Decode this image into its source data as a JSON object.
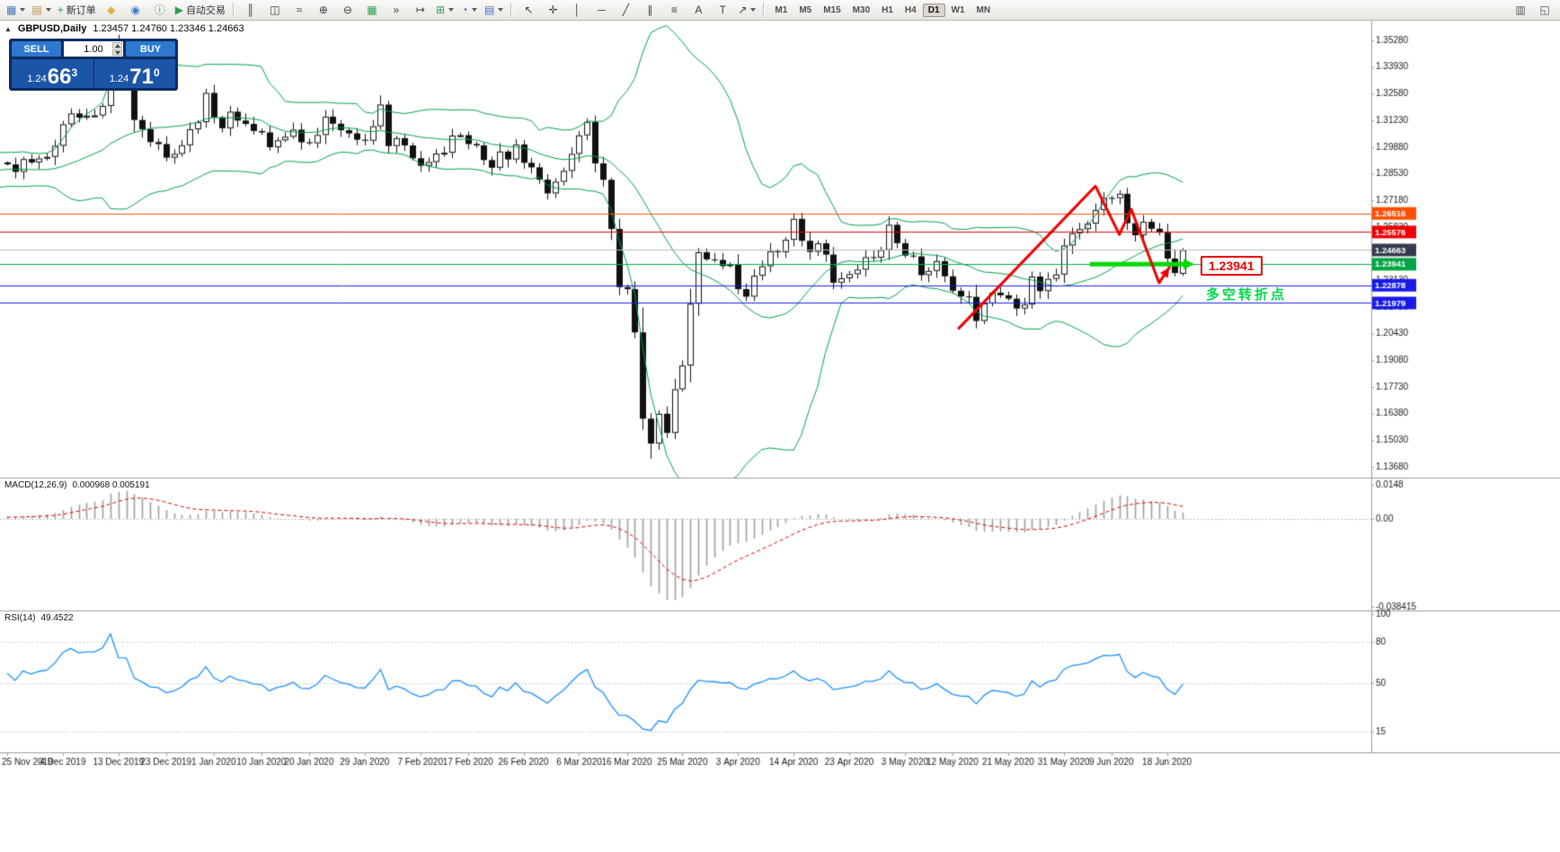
{
  "toolbar": {
    "standard": [
      {
        "name": "new-chart",
        "glyph": "▦",
        "color": "#4a76b8",
        "dropdown": true
      },
      {
        "name": "profiles",
        "glyph": "▤",
        "color": "#b8913f",
        "dropdown": true
      },
      {
        "name": "new-order",
        "glyph": "+",
        "color": "#1ea24d",
        "label": "新订单"
      },
      {
        "name": "metaeditor",
        "glyph": "◆",
        "color": "#e0b23e"
      },
      {
        "name": "community",
        "glyph": "◉",
        "color": "#3f7fd0"
      },
      {
        "name": "help",
        "glyph": "ⓘ",
        "color": "#2d9e52"
      },
      {
        "name": "autotrading",
        "glyph": "▶",
        "color": "#21a04b",
        "label": "自动交易"
      }
    ],
    "chart_tools": [
      {
        "name": "bar-chart",
        "glyph": "║",
        "color": "#3c3c3c"
      },
      {
        "name": "candlestick-chart",
        "glyph": "◫",
        "color": "#3c3c3c"
      },
      {
        "name": "line-chart",
        "glyph": "≈",
        "color": "#3c3c3c"
      },
      {
        "name": "zoom-in",
        "glyph": "⊕",
        "color": "#3c3c3c"
      },
      {
        "name": "zoom-out",
        "glyph": "⊖",
        "color": "#3c3c3c"
      },
      {
        "name": "tile-windows",
        "glyph": "▦",
        "color": "#2d9e52"
      },
      {
        "name": "auto-scroll",
        "glyph": "»",
        "color": "#3c3c3c"
      },
      {
        "name": "chart-shift",
        "glyph": "↦",
        "color": "#3c3c3c"
      },
      {
        "name": "indicators",
        "glyph": "⊞",
        "color": "#2d9e52",
        "dropdown": true
      },
      {
        "name": "periods",
        "glyph": "◔",
        "color": "#3c6fc0",
        "dropdown": true
      },
      {
        "name": "templates",
        "glyph": "▤",
        "color": "#3c6fc0",
        "dropdown": true
      }
    ],
    "line_tools": [
      {
        "name": "cursor",
        "glyph": "↖",
        "color": "#3c3c3c"
      },
      {
        "name": "crosshair",
        "glyph": "✛",
        "color": "#3c3c3c"
      },
      {
        "name": "vertical-line",
        "glyph": "│",
        "color": "#3c3c3c"
      },
      {
        "name": "horizontal-line",
        "glyph": "─",
        "color": "#3c3c3c"
      },
      {
        "name": "trendline",
        "glyph": "╱",
        "color": "#3c3c3c"
      },
      {
        "name": "channel",
        "glyph": "∥",
        "color": "#3c3c3c"
      },
      {
        "name": "fibonacci",
        "glyph": "≡",
        "color": "#3c3c3c"
      },
      {
        "name": "text",
        "glyph": "A",
        "color": "#3c3c3c"
      },
      {
        "name": "text-label",
        "glyph": "T",
        "color": "#3c3c3c"
      },
      {
        "name": "arrows",
        "glyph": "↗",
        "color": "#3c3c3c",
        "dropdown": true
      }
    ],
    "periods": [
      {
        "label": "M1"
      },
      {
        "label": "M5"
      },
      {
        "label": "M15"
      },
      {
        "label": "M30"
      },
      {
        "label": "H1"
      },
      {
        "label": "H4"
      },
      {
        "label": "D1",
        "active": true
      },
      {
        "label": "W1"
      },
      {
        "label": "MN"
      }
    ],
    "right_icons": [
      {
        "name": "print",
        "glyph": "▥",
        "color": "#555555"
      },
      {
        "name": "fullscreen",
        "glyph": "◱",
        "color": "#555555"
      }
    ]
  },
  "chart": {
    "title": {
      "collapse_marker": "▲",
      "symbol_period": "GBPUSD,Daily",
      "ohlc": "1.23457 1.24760 1.23346 1.24663"
    },
    "trade_panel": {
      "sell_label": "SELL",
      "buy_label": "BUY",
      "volume": "1.00",
      "sell_price": {
        "prefix": "1.24",
        "big": "66",
        "sup": "3"
      },
      "buy_price": {
        "prefix": "1.24",
        "big": "71",
        "sup": "0"
      }
    },
    "annotations": {
      "price_label_text": "1.23941",
      "turning_point_text": "多空转折点"
    }
  },
  "macd": {
    "name": "MACD(12,26,9)",
    "values_text": "0.000968 0.005191",
    "scale": [
      {
        "v": 0.0148,
        "t": "0.0148"
      },
      {
        "v": 0,
        "t": "0.00"
      },
      {
        "v": -0.038415,
        "t": "-0.038415"
      }
    ]
  },
  "rsi": {
    "name": "RSI(14)",
    "value": "49.4522",
    "scale": [
      {
        "v": 100,
        "t": "100"
      },
      {
        "v": 80,
        "t": "80"
      },
      {
        "v": 50,
        "t": "50"
      },
      {
        "v": 15,
        "t": "15"
      }
    ]
  },
  "chart_data": {
    "type": "candlestick",
    "title": "GBPUSD,Daily",
    "symbol": "GBPUSD",
    "timeframe": "Daily",
    "ohlc_display": {
      "open": 1.23457,
      "high": 1.2476,
      "low": 1.23346,
      "close": 1.24663
    },
    "price_axis": {
      "top": 1.3528,
      "bottom": 1.1368,
      "ticks": [
        1.3528,
        1.3393,
        1.3258,
        1.3123,
        1.2988,
        1.2853,
        1.2718,
        1.2583,
        1.2448,
        1.2313,
        1.2178,
        1.2043,
        1.1908,
        1.1773,
        1.1638,
        1.1503,
        1.1368
      ]
    },
    "x_axis": {
      "labels": [
        {
          "i": 0,
          "t": "25 Nov 2019"
        },
        {
          "i": 7,
          "t": "4 Dec 2019"
        },
        {
          "i": 14,
          "t": "13 Dec 2019"
        },
        {
          "i": 20,
          "t": "23 Dec 2019"
        },
        {
          "i": 26,
          "t": "1 Jan 2020"
        },
        {
          "i": 32,
          "t": "10 Jan 2020"
        },
        {
          "i": 38,
          "t": "20 Jan 2020"
        },
        {
          "i": 45,
          "t": "29 Jan 2020"
        },
        {
          "i": 52,
          "t": "7 Feb 2020"
        },
        {
          "i": 58,
          "t": "17 Feb 2020"
        },
        {
          "i": 65,
          "t": "26 Feb 2020"
        },
        {
          "i": 72,
          "t": "6 Mar 2020"
        },
        {
          "i": 78,
          "t": "16 Mar 2020"
        },
        {
          "i": 85,
          "t": "25 Mar 2020"
        },
        {
          "i": 92,
          "t": "3 Apr 2020"
        },
        {
          "i": 99,
          "t": "14 Apr 2020"
        },
        {
          "i": 106,
          "t": "23 Apr 2020"
        },
        {
          "i": 113,
          "t": "3 May 2020"
        },
        {
          "i": 119,
          "t": "12 May 2020"
        },
        {
          "i": 126,
          "t": "21 May 2020"
        },
        {
          "i": 133,
          "t": "31 May 2020"
        },
        {
          "i": 139,
          "t": "9 Jun 2020"
        },
        {
          "i": 146,
          "t": "18 Jun 2020"
        }
      ]
    },
    "pre_closes": [
      1.2823,
      1.2866,
      1.2906,
      1.2948,
      1.294,
      1.293,
      1.2886,
      1.2881,
      1.2854,
      1.285,
      1.279,
      1.2797,
      1.2852,
      1.2854,
      1.2892,
      1.2921,
      1.285,
      1.2835,
      1.2837,
      1.291
    ],
    "closes": [
      1.29,
      1.2862,
      1.2927,
      1.291,
      1.293,
      1.2938,
      1.2994,
      1.3103,
      1.3158,
      1.3137,
      1.3147,
      1.3148,
      1.3196,
      1.3502,
      1.333,
      1.3328,
      1.3125,
      1.3078,
      1.3013,
      1.3003,
      1.2934,
      1.2953,
      1.2997,
      1.3078,
      1.3114,
      1.3262,
      1.3138,
      1.3083,
      1.3167,
      1.3122,
      1.3105,
      1.3069,
      1.3062,
      1.2987,
      1.3022,
      1.304,
      1.3076,
      1.3012,
      1.3007,
      1.3049,
      1.3142,
      1.3106,
      1.3073,
      1.3057,
      1.3025,
      1.302,
      1.3093,
      1.3203,
      1.2993,
      1.3033,
      1.2996,
      1.2931,
      1.2893,
      1.2912,
      1.2955,
      1.2959,
      1.3046,
      1.3048,
      1.3003,
      1.2996,
      1.2922,
      1.2883,
      1.2965,
      1.2925,
      1.3001,
      1.2908,
      1.2885,
      1.2823,
      1.2753,
      1.2812,
      1.2867,
      1.2953,
      1.3047,
      1.3115,
      1.2905,
      1.2822,
      1.2573,
      1.2278,
      1.2268,
      1.2049,
      1.1612,
      1.1486,
      1.1637,
      1.154,
      1.1761,
      1.1881,
      1.2194,
      1.2455,
      1.2419,
      1.2416,
      1.2385,
      1.2394,
      1.2268,
      1.223,
      1.2336,
      1.2384,
      1.246,
      1.2455,
      1.2518,
      1.2624,
      1.2513,
      1.2457,
      1.25,
      1.2443,
      1.2301,
      1.2323,
      1.2344,
      1.2367,
      1.243,
      1.2428,
      1.2466,
      1.2594,
      1.2501,
      1.2438,
      1.2434,
      1.2339,
      1.236,
      1.241,
      1.2333,
      1.226,
      1.2231,
      1.2229,
      1.2107,
      1.2196,
      1.225,
      1.2237,
      1.222,
      1.217,
      1.219,
      1.2332,
      1.2258,
      1.232,
      1.2342,
      1.2489,
      1.2551,
      1.2572,
      1.26,
      1.2669,
      1.273,
      1.2729,
      1.2751,
      1.2602,
      1.2541,
      1.2609,
      1.2574,
      1.2554,
      1.2423,
      1.235,
      1.24663
    ],
    "last_candle": {
      "open": 1.23457,
      "high": 1.2476,
      "low": 1.23346,
      "close": 1.24663
    },
    "wick_overrides": {
      "13": [
        1.3515,
        1.316
      ],
      "81": [
        1.164,
        1.1409
      ],
      "148": [
        1.2476,
        1.23346
      ]
    },
    "bollinger": {
      "period": 20,
      "deviation": 2,
      "color": "#00a14e"
    },
    "macd": {
      "fast": 12,
      "slow": 26,
      "signal": 9,
      "max": 0.0148,
      "min": -0.038415,
      "hist_color": "#9f9f9f",
      "signal_color": "#e00000"
    },
    "rsi": {
      "period": 14,
      "value": 49.4522,
      "levels": [
        80,
        50,
        15
      ],
      "color": "#1E90FF"
    },
    "horizontal_lines": [
      {
        "price": 1.26516,
        "label": "1.26516",
        "color": "#ff4f02",
        "label_bg": "#ff4f02"
      },
      {
        "price": 1.25576,
        "label": "1.25576",
        "color": "#ee0000",
        "label_bg": "#ee0000"
      },
      {
        "price": 1.24663,
        "label": "1.24663",
        "color": "#b8b8b8",
        "label_bg": "#343b4e",
        "current": true
      },
      {
        "price": 1.23941,
        "label": "1.23941",
        "color": "#00b050",
        "label_bg": "#00a544"
      },
      {
        "price": 1.22878,
        "label": "1.22878",
        "color": "#1a1ae6",
        "label_bg": "#1a1ae6"
      },
      {
        "price": 1.21979,
        "label": "1.21979",
        "color": "#1a1ae6",
        "label_bg": "#1a1ae6"
      }
    ],
    "red_path": {
      "color": "#ee0000",
      "width": 3,
      "points": [
        [
          119.8,
          1.207
        ],
        [
          137.0,
          1.279
        ],
        [
          140.0,
          1.2545
        ],
        [
          141.5,
          1.2673
        ],
        [
          145.0,
          1.23
        ],
        [
          146.3,
          1.2378
        ]
      ]
    },
    "green_segment": {
      "from_idx": 136.3,
      "to_idx": 148.2,
      "price": 1.23941,
      "color": "#00d900",
      "width": 5
    }
  }
}
